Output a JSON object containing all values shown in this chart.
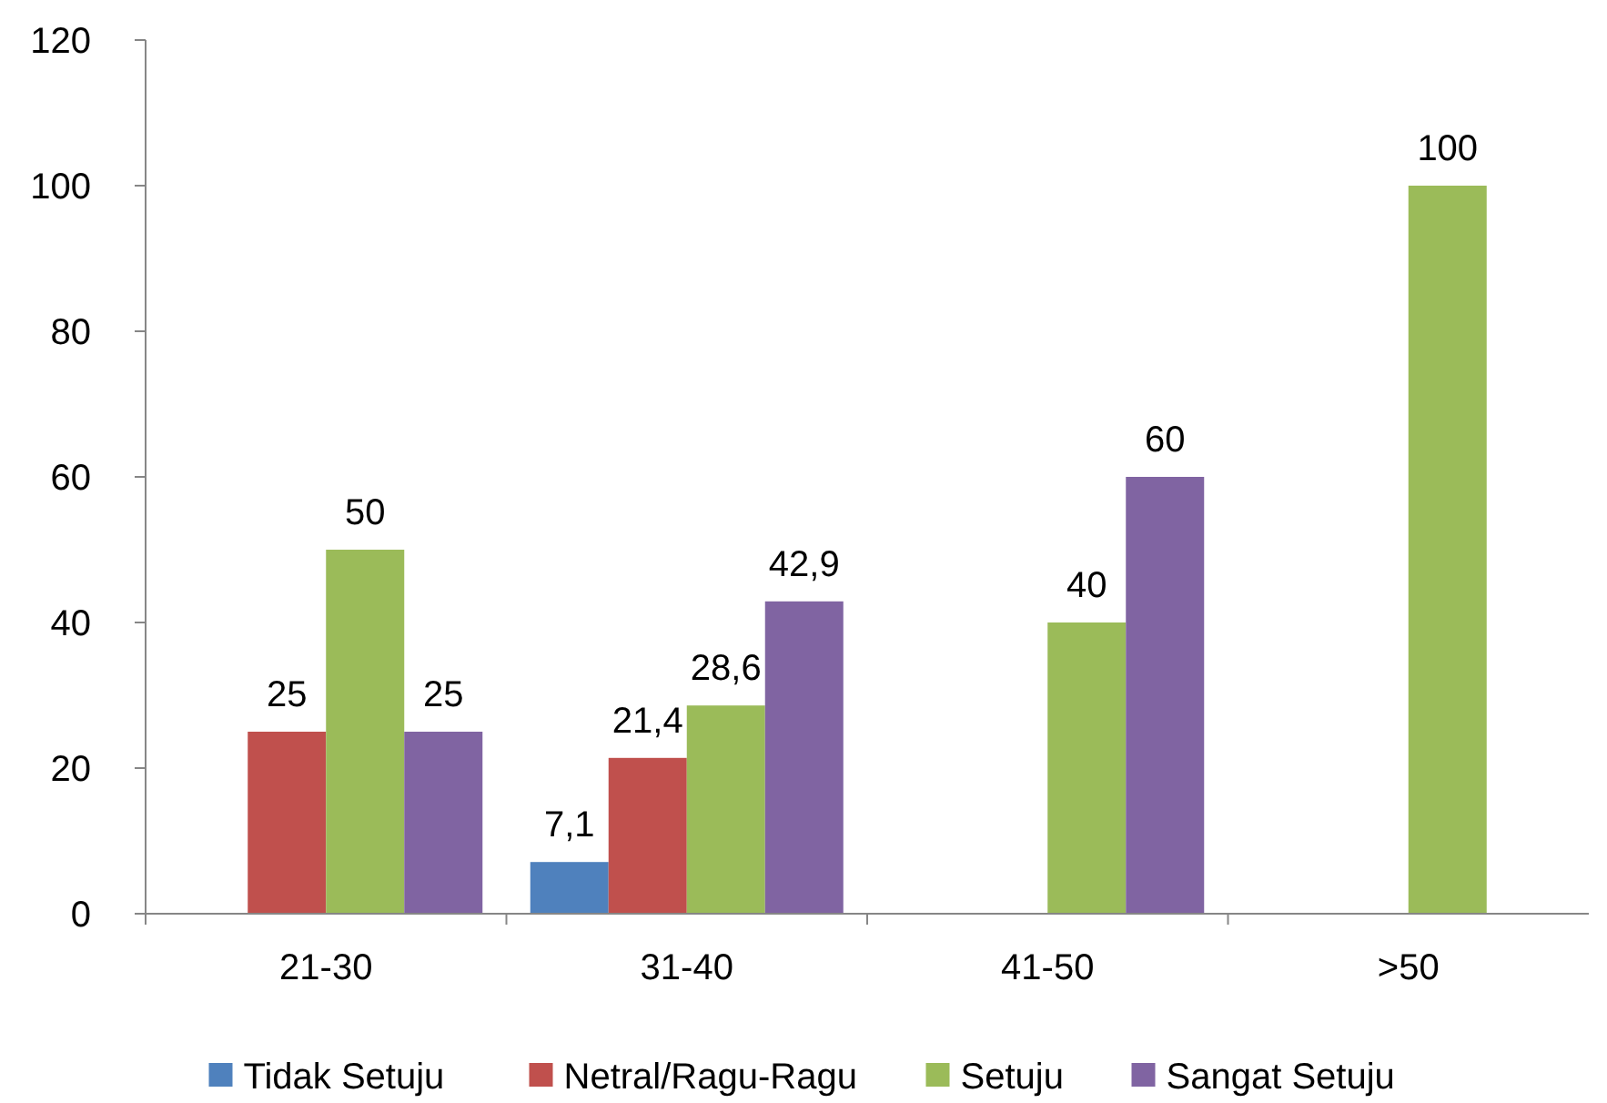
{
  "chart_data": {
    "type": "bar",
    "categories": [
      "21-30",
      "31-40",
      "41-50",
      ">50"
    ],
    "series": [
      {
        "name": "Tidak Setuju",
        "color": "#4f81bd",
        "values": [
          0,
          7.1,
          0,
          0
        ],
        "value_labels": [
          null,
          "7,1",
          null,
          null
        ]
      },
      {
        "name": "Netral/Ragu-Ragu",
        "color": "#c0504d",
        "values": [
          25,
          21.4,
          0,
          0
        ],
        "value_labels": [
          "25",
          "21,4",
          null,
          null
        ]
      },
      {
        "name": "Setuju",
        "color": "#9bbb59",
        "values": [
          50,
          28.6,
          40,
          100
        ],
        "value_labels": [
          "50",
          "28,6",
          "40",
          "100"
        ]
      },
      {
        "name": "Sangat Setuju",
        "color": "#8064a2",
        "values": [
          25,
          42.9,
          60,
          0
        ],
        "value_labels": [
          "25",
          "42,9",
          "60",
          null
        ]
      }
    ],
    "ylim": [
      0,
      120
    ],
    "yticks": [
      0,
      20,
      40,
      60,
      80,
      100,
      120
    ],
    "grid": false,
    "legend": "bottom"
  }
}
